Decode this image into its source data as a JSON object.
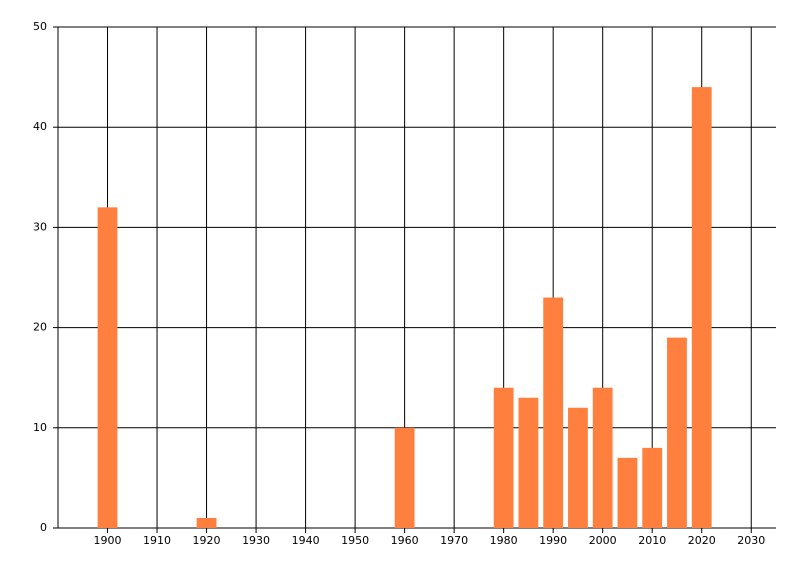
{
  "chart_data": {
    "type": "bar",
    "x": [
      1900,
      1920,
      1960,
      1980,
      1985,
      1990,
      1995,
      2000,
      2005,
      2010,
      2015,
      2020
    ],
    "values": [
      32,
      1,
      10,
      14,
      13,
      23,
      12,
      14,
      7,
      8,
      19,
      44
    ],
    "color": "#ff7f3f",
    "xlim": [
      1890,
      2035
    ],
    "xticks": [
      1900,
      1910,
      1920,
      1930,
      1940,
      1950,
      1960,
      1970,
      1980,
      1990,
      2000,
      2010,
      2020,
      2030
    ],
    "ylim": [
      0,
      50
    ],
    "yticks": [
      0,
      10,
      20,
      30,
      40,
      50
    ],
    "grid": true
  }
}
